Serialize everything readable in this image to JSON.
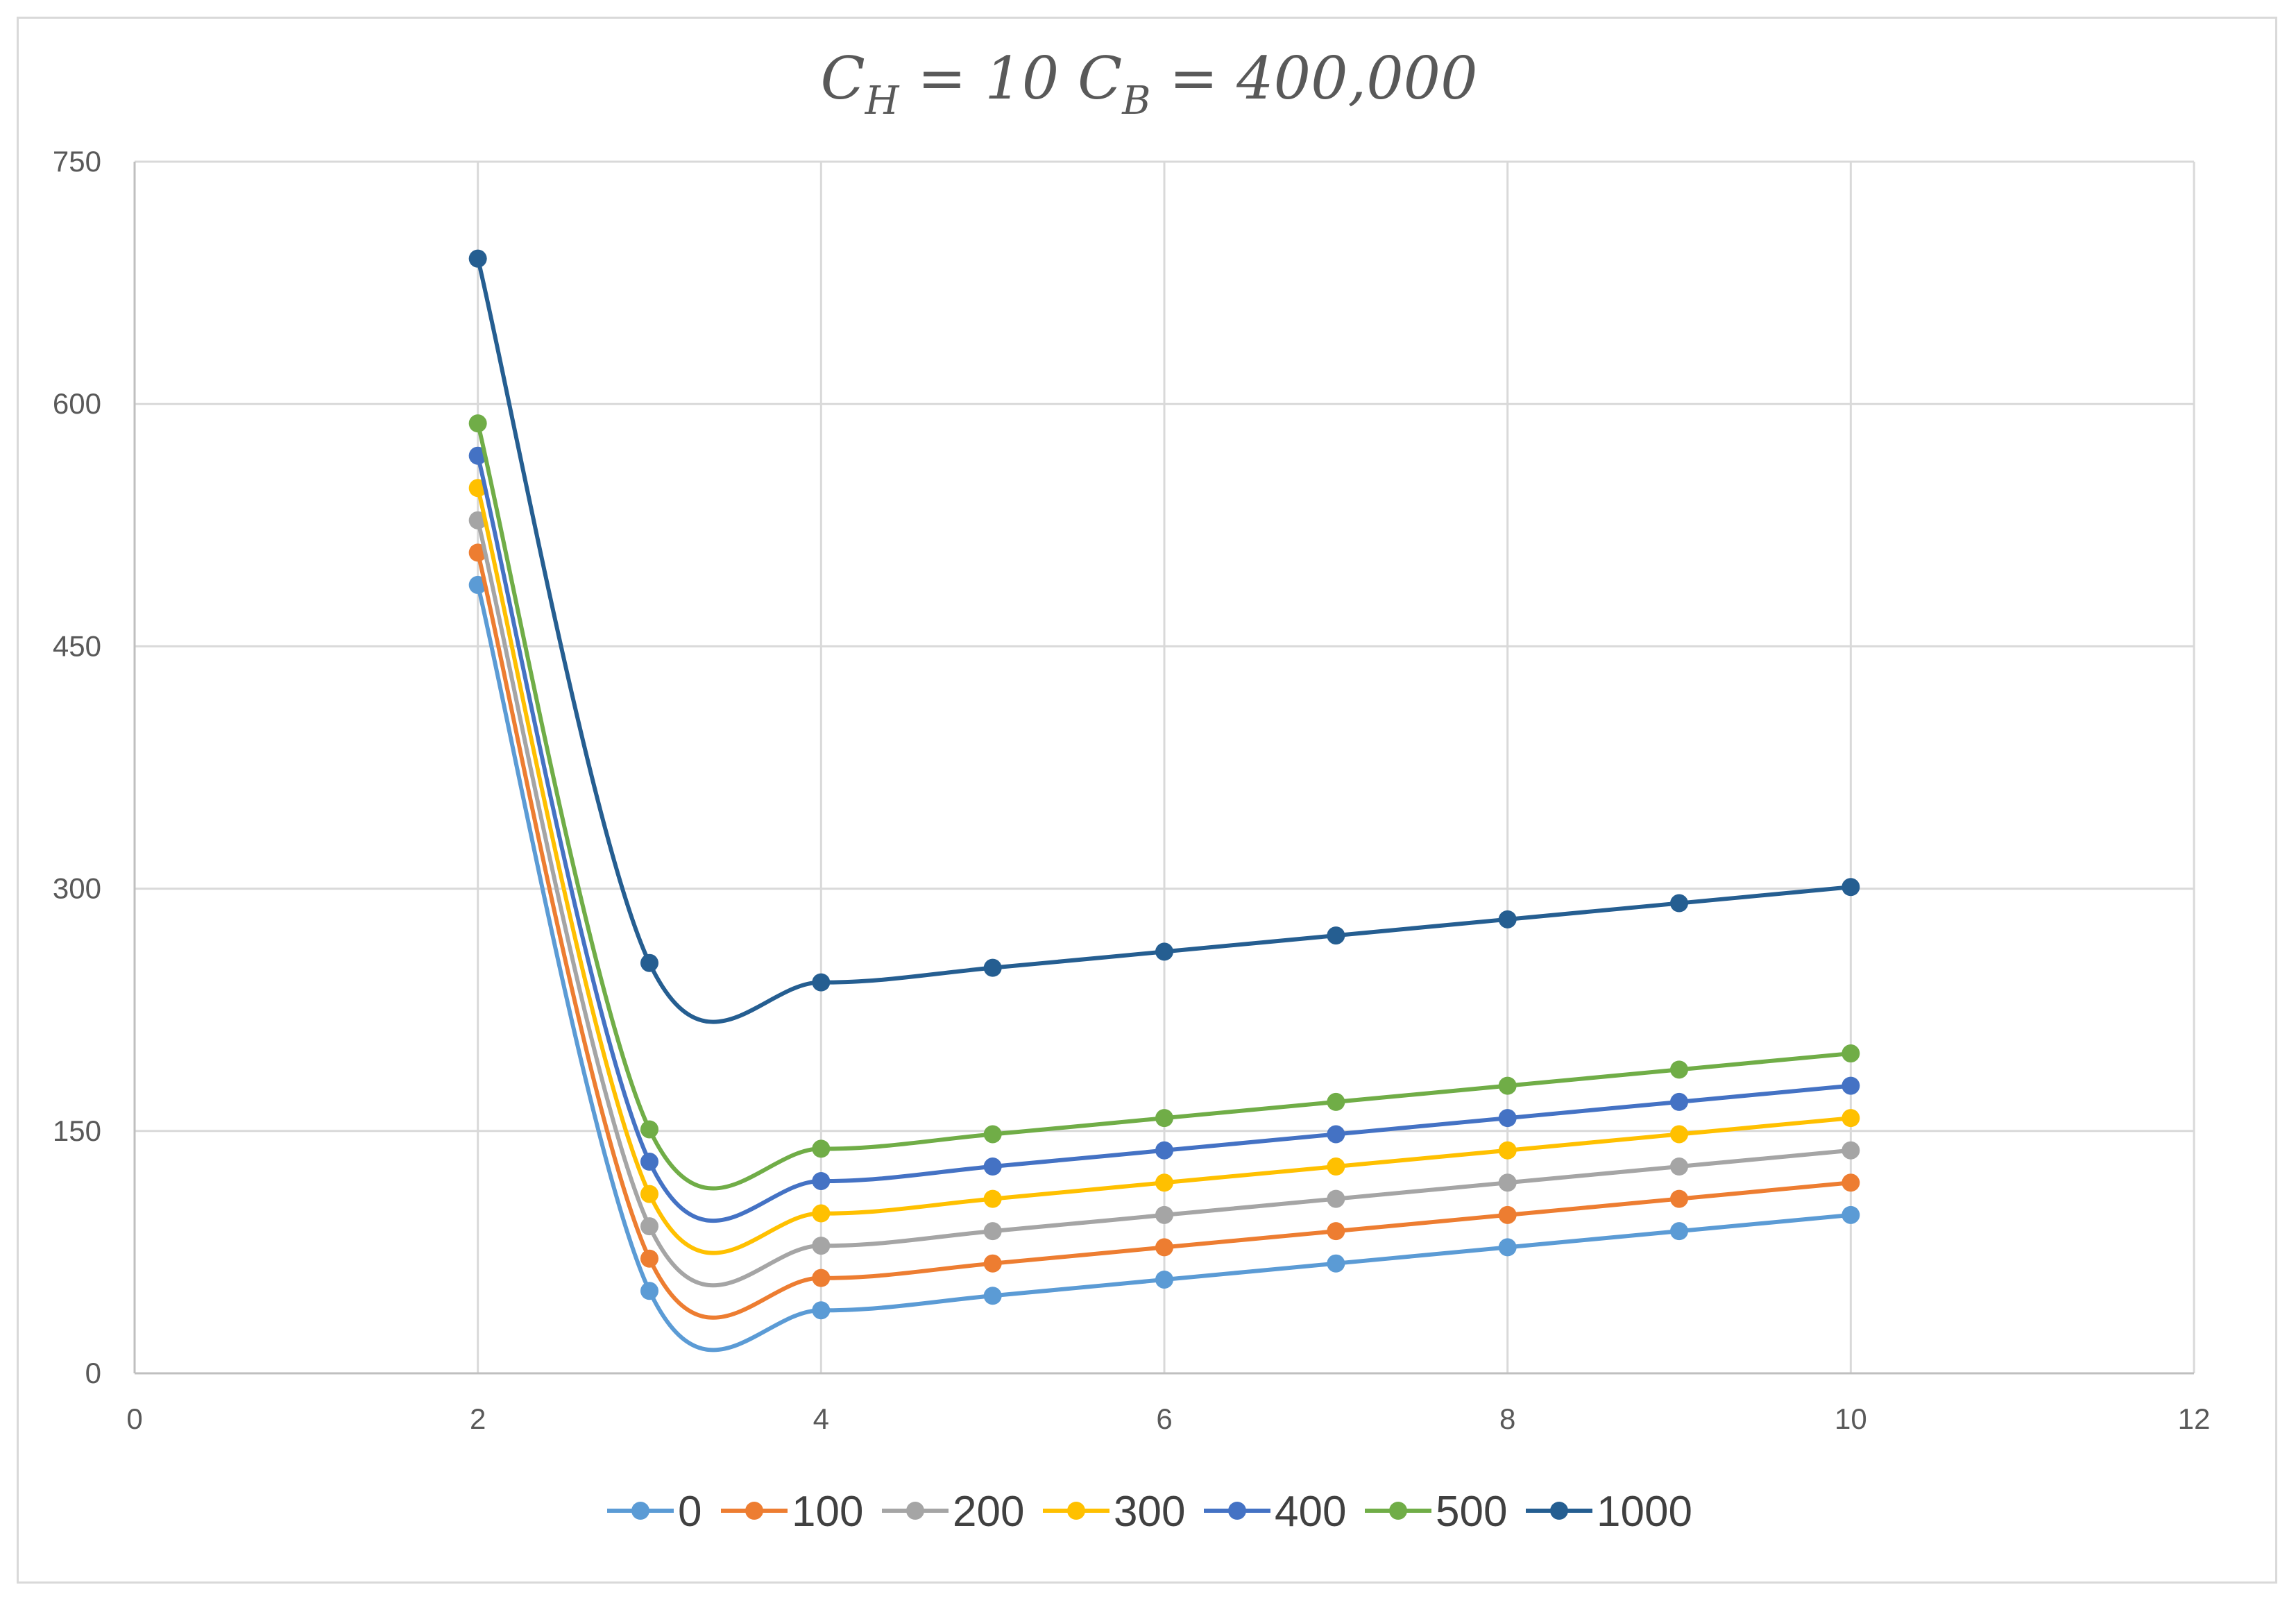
{
  "chart_data": {
    "type": "line",
    "smooth": true,
    "title": {
      "parts": [
        {
          "text": "C",
          "sub": "H"
        },
        {
          "text": "= 10   "
        },
        {
          "text": "C",
          "sub": "B"
        },
        {
          "text": "= 400,000"
        }
      ]
    },
    "xlabel": "",
    "ylabel": "",
    "xlim": [
      0,
      12
    ],
    "ylim": [
      0,
      750
    ],
    "x_ticks": [
      0,
      2,
      4,
      6,
      8,
      10,
      12
    ],
    "y_ticks": [
      0,
      150,
      300,
      450,
      600,
      750
    ],
    "grid": true,
    "legend_position": "bottom",
    "x": [
      2,
      3,
      4,
      5,
      6,
      7,
      8,
      9,
      10
    ],
    "series": [
      {
        "name": "0",
        "color": "#5B9BD5",
        "values": [
          488,
          51,
          39,
          48,
          58,
          68,
          78,
          88,
          98
        ]
      },
      {
        "name": "100",
        "color": "#ED7D31",
        "values": [
          508,
          71,
          59,
          68,
          78,
          88,
          98,
          108,
          118
        ]
      },
      {
        "name": "200",
        "color": "#A5A5A5",
        "values": [
          528,
          91,
          79,
          88,
          98,
          108,
          118,
          128,
          138
        ]
      },
      {
        "name": "300",
        "color": "#FFC000",
        "values": [
          548,
          111,
          99,
          108,
          118,
          128,
          138,
          148,
          158
        ]
      },
      {
        "name": "400",
        "color": "#4472C4",
        "values": [
          568,
          131,
          119,
          128,
          138,
          148,
          158,
          168,
          178
        ]
      },
      {
        "name": "500",
        "color": "#70AD47",
        "values": [
          588,
          151,
          139,
          148,
          158,
          168,
          178,
          188,
          198
        ]
      },
      {
        "name": "1000",
        "color": "#255E91",
        "values": [
          690,
          254,
          242,
          251,
          261,
          271,
          281,
          291,
          301
        ]
      }
    ]
  }
}
